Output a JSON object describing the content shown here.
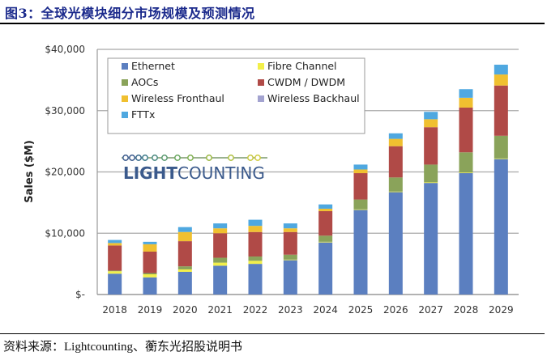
{
  "figure": {
    "title": "图3：全球光模块细分市场规模及预测情况",
    "source": "资料来源：Lightcounting、蘅东光招股说明书",
    "logo_text_bold": "LIGHT",
    "logo_text_light": "COUNTING"
  },
  "chart_data": {
    "type": "bar",
    "stacked": true,
    "title": "",
    "xlabel": "",
    "ylabel": "Sales ($M)",
    "ylim": [
      0,
      40000
    ],
    "yticks": [
      0,
      10000,
      20000,
      30000,
      40000
    ],
    "ytick_labels": [
      "$-",
      "$10,000",
      "$20,000",
      "$30,000",
      "$40,000"
    ],
    "grid": true,
    "legend_position": "top-left (inside)",
    "categories": [
      "2018",
      "2019",
      "2020",
      "2021",
      "2022",
      "2023",
      "2024",
      "2025",
      "2026",
      "2027",
      "2028",
      "2029"
    ],
    "series": [
      {
        "name": "Ethernet",
        "color": "#5b7fc0",
        "values": [
          3400,
          2800,
          3700,
          4700,
          5000,
          5600,
          8500,
          13800,
          16700,
          18200,
          19800,
          22100
        ]
      },
      {
        "name": "Fibre Channel",
        "color": "#f2ef4a",
        "values": [
          400,
          500,
          400,
          500,
          500,
          100,
          100,
          100,
          100,
          100,
          100,
          100
        ]
      },
      {
        "name": "AOCs",
        "color": "#8aa35a",
        "values": [
          100,
          200,
          500,
          800,
          700,
          800,
          1000,
          1600,
          2300,
          2900,
          3300,
          3700
        ]
      },
      {
        "name": "CWDM / DWDM",
        "color": "#b04a47",
        "values": [
          4100,
          3500,
          4100,
          4000,
          4000,
          3700,
          4000,
          4300,
          5100,
          6100,
          7300,
          8200
        ]
      },
      {
        "name": "Wireless Fronthaul",
        "color": "#f0c030",
        "values": [
          400,
          1200,
          1500,
          800,
          1000,
          600,
          400,
          600,
          1200,
          1300,
          1600,
          1800
        ]
      },
      {
        "name": "Wireless Backhaul",
        "color": "#a3a3d0",
        "values": [
          0,
          0,
          0,
          0,
          0,
          0,
          0,
          0,
          0,
          0,
          0,
          0
        ]
      },
      {
        "name": "FTTx",
        "color": "#4fa8e0",
        "values": [
          500,
          400,
          800,
          800,
          1000,
          800,
          700,
          800,
          900,
          1200,
          1400,
          1600
        ]
      }
    ]
  }
}
